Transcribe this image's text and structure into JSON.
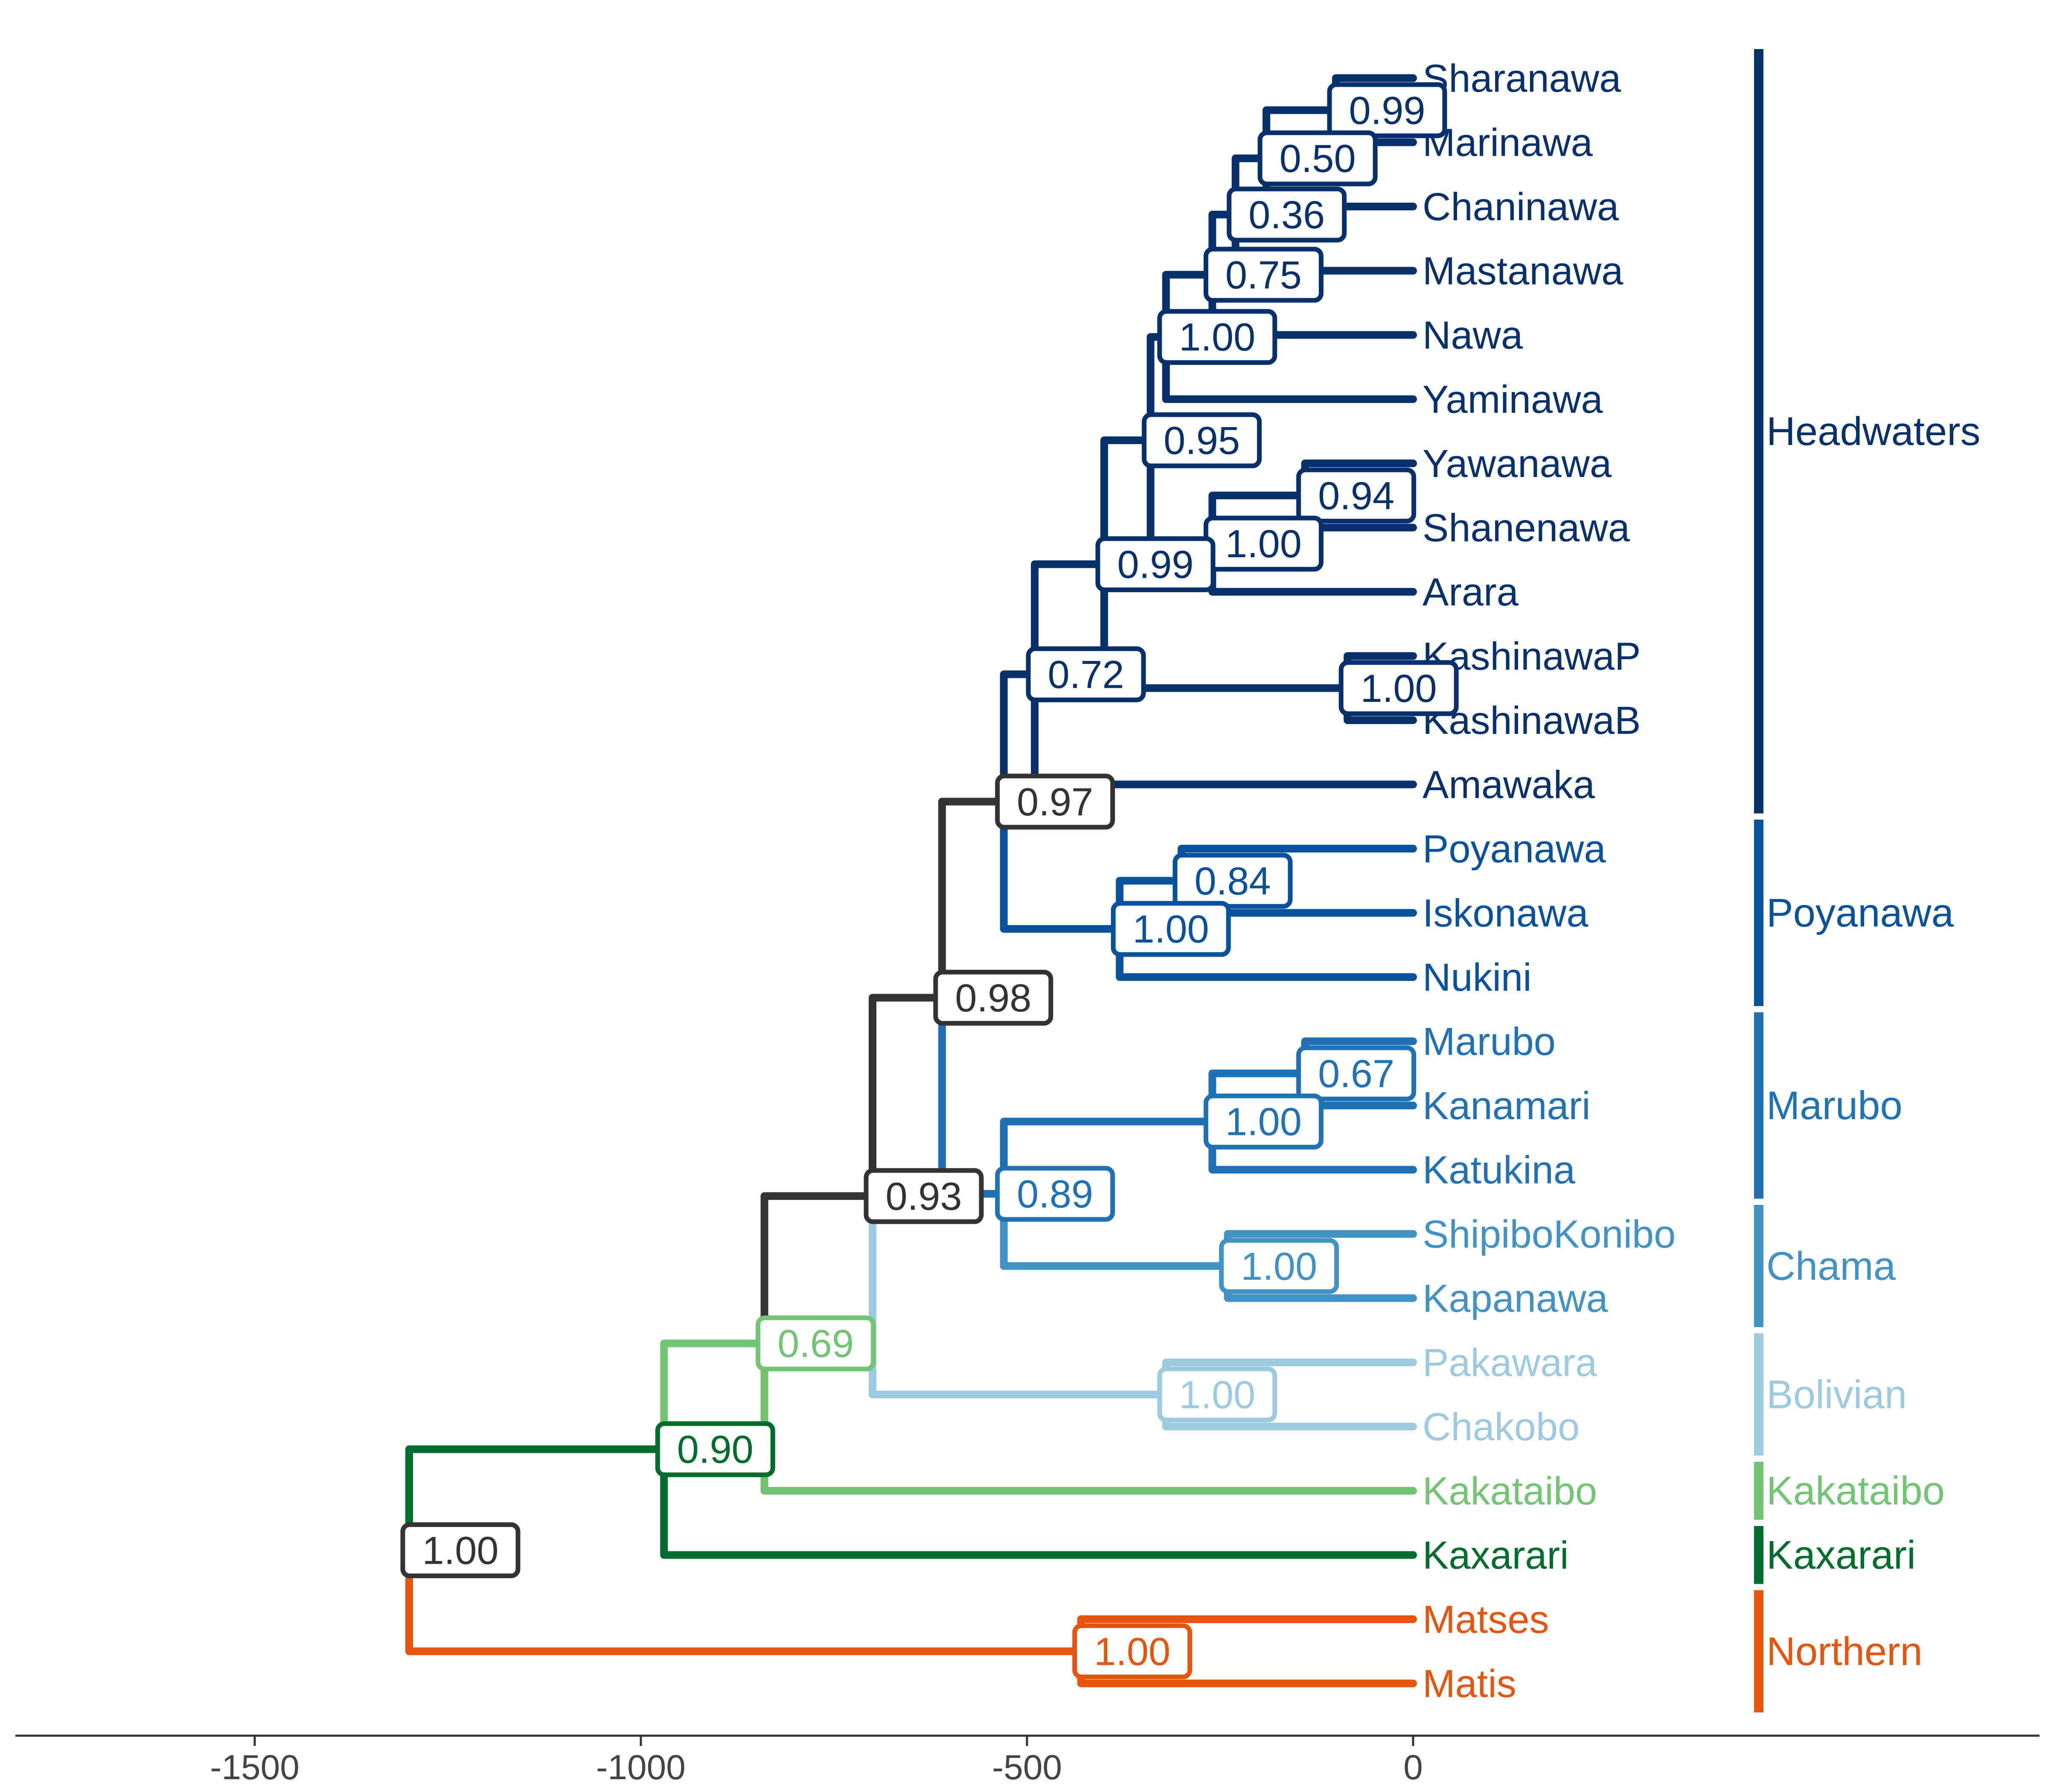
{
  "colors": {
    "root": "#333333",
    "headwaters": "#08306b",
    "poyanawa": "#08519c",
    "marubo": "#2171b5",
    "chama": "#4292c6",
    "bolivian": "#9ecae1",
    "kakataibo": "#74c476",
    "kaxarari": "#006d2c",
    "northern": "#e6550d",
    "axis": "#333333",
    "tick_label": "#444444"
  },
  "axis": {
    "ticks": [
      -1500,
      -1000,
      -500,
      0
    ],
    "tick_labels": [
      "-1500",
      "-1000",
      "-500",
      "0"
    ]
  },
  "taxa": [
    {
      "name": "Sharanawa",
      "group": "headwaters"
    },
    {
      "name": "Marinawa",
      "group": "headwaters"
    },
    {
      "name": "Chaninawa",
      "group": "headwaters"
    },
    {
      "name": "Mastanawa",
      "group": "headwaters"
    },
    {
      "name": "Nawa",
      "group": "headwaters"
    },
    {
      "name": "Yaminawa",
      "group": "headwaters"
    },
    {
      "name": "Yawanawa",
      "group": "headwaters"
    },
    {
      "name": "Shanenawa",
      "group": "headwaters"
    },
    {
      "name": "Arara",
      "group": "headwaters"
    },
    {
      "name": "KashinawaP",
      "group": "headwaters"
    },
    {
      "name": "KashinawaB",
      "group": "headwaters"
    },
    {
      "name": "Amawaka",
      "group": "headwaters"
    },
    {
      "name": "Poyanawa",
      "group": "poyanawa"
    },
    {
      "name": "Iskonawa",
      "group": "poyanawa"
    },
    {
      "name": "Nukini",
      "group": "poyanawa"
    },
    {
      "name": "Marubo",
      "group": "marubo"
    },
    {
      "name": "Kanamari",
      "group": "marubo"
    },
    {
      "name": "Katukina",
      "group": "marubo"
    },
    {
      "name": "ShipiboKonibo",
      "group": "chama"
    },
    {
      "name": "Kapanawa",
      "group": "chama"
    },
    {
      "name": "Pakawara",
      "group": "bolivian"
    },
    {
      "name": "Chakobo",
      "group": "bolivian"
    },
    {
      "name": "Kakataibo",
      "group": "kakataibo"
    },
    {
      "name": "Kaxarari",
      "group": "kaxarari"
    },
    {
      "name": "Matses",
      "group": "northern"
    },
    {
      "name": "Matis",
      "group": "northern"
    }
  ],
  "clades": [
    {
      "label": "Headwaters",
      "group": "headwaters",
      "from": 0,
      "to": 11
    },
    {
      "label": "Poyanawa",
      "group": "poyanawa",
      "from": 12,
      "to": 14
    },
    {
      "label": "Marubo",
      "group": "marubo",
      "from": 15,
      "to": 17
    },
    {
      "label": "Chama",
      "group": "chama",
      "from": 18,
      "to": 19
    },
    {
      "label": "Bolivian",
      "group": "bolivian",
      "from": 20,
      "to": 21
    },
    {
      "label": "Kakataibo",
      "group": "kakataibo",
      "from": 22,
      "to": 22
    },
    {
      "label": "Kaxarari",
      "group": "kaxarari",
      "from": 23,
      "to": 23
    },
    {
      "label": "Northern",
      "group": "northern",
      "from": 24,
      "to": 25
    }
  ],
  "nodes": [
    {
      "id": "n_sha_mar",
      "age": -100,
      "support": "0.99",
      "group": "headwaters",
      "children": [
        0,
        1
      ]
    },
    {
      "id": "n_cha",
      "age": -190,
      "support": "0.50",
      "group": "headwaters",
      "children": [
        "n_sha_mar",
        2
      ]
    },
    {
      "id": "n_mas",
      "age": -230,
      "support": "0.36",
      "group": "headwaters",
      "children": [
        "n_cha",
        3
      ]
    },
    {
      "id": "n_nawa",
      "age": -260,
      "support": "0.75",
      "group": "headwaters",
      "children": [
        "n_mas",
        4
      ]
    },
    {
      "id": "n_yam",
      "age": -320,
      "support": "1.00",
      "group": "headwaters",
      "children": [
        "n_nawa",
        5
      ]
    },
    {
      "id": "n_yaw_sha",
      "age": -140,
      "support": "0.94",
      "group": "headwaters",
      "children": [
        6,
        7
      ]
    },
    {
      "id": "n_arara",
      "age": -260,
      "support": "1.00",
      "group": "headwaters",
      "children": [
        "n_yaw_sha",
        8
      ]
    },
    {
      "id": "n_yam_ara",
      "age": -340,
      "support": "0.95",
      "group": "headwaters",
      "children": [
        "n_yam",
        "n_arara"
      ]
    },
    {
      "id": "n_kash",
      "age": -85,
      "support": "1.00",
      "group": "headwaters",
      "children": [
        9,
        10
      ]
    },
    {
      "id": "n_kash_grp",
      "age": -400,
      "support": "0.99",
      "group": "headwaters",
      "children": [
        "n_yam_ara",
        "n_kash"
      ]
    },
    {
      "id": "n_headwaters",
      "age": -490,
      "support": "0.72",
      "group": "headwaters",
      "children": [
        "n_kash_grp",
        11
      ]
    },
    {
      "id": "n_poy_isk",
      "age": -300,
      "support": "0.84",
      "group": "poyanawa",
      "children": [
        12,
        13
      ]
    },
    {
      "id": "n_poyanawa",
      "age": -380,
      "support": "1.00",
      "group": "poyanawa",
      "children": [
        "n_poy_isk",
        14
      ]
    },
    {
      "id": "n_hw_poy",
      "age": -530,
      "support": "0.97",
      "group": "root",
      "children": [
        "n_headwaters",
        "n_poyanawa"
      ]
    },
    {
      "id": "n_mar_kan",
      "age": -140,
      "support": "0.67",
      "group": "marubo",
      "children": [
        15,
        16
      ]
    },
    {
      "id": "n_marubo",
      "age": -260,
      "support": "1.00",
      "group": "marubo",
      "children": [
        "n_mar_kan",
        17
      ]
    },
    {
      "id": "n_chama",
      "age": -240,
      "support": "1.00",
      "group": "chama",
      "children": [
        18,
        19
      ]
    },
    {
      "id": "n_mar_cha",
      "age": -530,
      "support": "0.89",
      "group": "marubo",
      "children": [
        "n_marubo",
        "n_chama"
      ]
    },
    {
      "id": "n_inner",
      "age": -610,
      "support": "0.98",
      "group": "root",
      "children": [
        "n_hw_poy",
        "n_mar_cha"
      ]
    },
    {
      "id": "n_bolivian",
      "age": -320,
      "support": "1.00",
      "group": "bolivian",
      "children": [
        20,
        21
      ]
    },
    {
      "id": "n_core",
      "age": -700,
      "support": "0.93",
      "group": "root",
      "children": [
        "n_inner",
        "n_bolivian"
      ]
    },
    {
      "id": "n_kak",
      "age": -840,
      "support": "0.69",
      "group": "kakataibo",
      "children": [
        "n_core",
        22
      ]
    },
    {
      "id": "n_kax",
      "age": -970,
      "support": "0.90",
      "group": "kaxarari",
      "children": [
        "n_kak",
        23
      ]
    },
    {
      "id": "n_north",
      "age": -430,
      "support": "1.00",
      "group": "northern",
      "children": [
        24,
        25
      ]
    },
    {
      "id": "n_root",
      "age": -1300,
      "support": "1.00",
      "group": "root",
      "children": [
        "n_kax",
        "n_north"
      ]
    }
  ]
}
